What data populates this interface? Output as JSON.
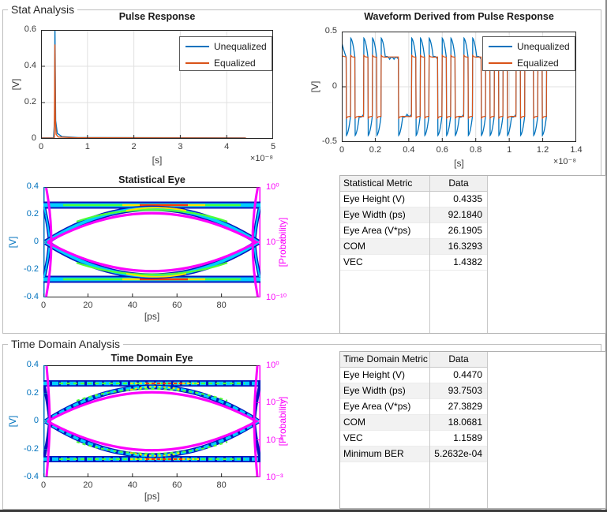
{
  "panels": {
    "stat": {
      "title": "Stat Analysis"
    },
    "time": {
      "title": "Time Domain Analysis"
    }
  },
  "legend": {
    "items": [
      {
        "label": "Unequalized",
        "color": "#0072BD"
      },
      {
        "label": "Equalized",
        "color": "#D95319"
      }
    ]
  },
  "colors": {
    "unequalized": "#0072BD",
    "equalized": "#D95319",
    "left_axis_volt": "#0072BD",
    "right_axis_prob": "#FB02FB",
    "axis_box": "#262626",
    "grid": "#e0e0e0"
  },
  "chart_data": [
    {
      "id": "pulse",
      "type": "line",
      "title": "Pulse Response",
      "xlabel": "[s]",
      "ylabel": "[V]",
      "x_scale_label": "×10⁻⁸",
      "xlim": [
        0,
        5
      ],
      "ylim": [
        0,
        0.6
      ],
      "grid": true,
      "xticks": [
        {
          "v": 0,
          "l": "0"
        },
        {
          "v": 1,
          "l": "1"
        },
        {
          "v": 2,
          "l": "2"
        },
        {
          "v": 3,
          "l": "3"
        },
        {
          "v": 4,
          "l": "4"
        },
        {
          "v": 5,
          "l": "5"
        }
      ],
      "yticks": [
        {
          "v": 0,
          "l": "0"
        },
        {
          "v": 0.2,
          "l": "0.2"
        },
        {
          "v": 0.4,
          "l": "0.4"
        },
        {
          "v": 0.6,
          "l": "0.6"
        }
      ],
      "legend": [
        "Unequalized",
        "Equalized"
      ],
      "series": [
        {
          "name": "Unequalized",
          "color": "#0072BD",
          "x": [
            0,
            0.27,
            0.29,
            0.3,
            0.315,
            0.35,
            0.45,
            0.8,
            4.4
          ],
          "y": [
            0.005,
            0.005,
            0.1,
            0.62,
            0.1,
            0.03,
            0.012,
            0.007,
            0.005
          ]
        },
        {
          "name": "Equalized",
          "color": "#D95319",
          "x": [
            0,
            0.285,
            0.3,
            0.31,
            0.325,
            0.37,
            0.7,
            4.42
          ],
          "y": [
            0.004,
            0.004,
            0.52,
            0.1,
            0.025,
            0.01,
            0.006,
            0.004
          ]
        }
      ]
    },
    {
      "id": "waveform",
      "type": "line",
      "title": "Waveform Derived from Pulse Response",
      "xlabel": "[s]",
      "ylabel": "[V]",
      "x_scale_label": "×10⁻⁸",
      "xlim": [
        0,
        1.4
      ],
      "ylim": [
        -0.5,
        0.5
      ],
      "grid": true,
      "xticks": [
        {
          "v": 0,
          "l": "0"
        },
        {
          "v": 0.2,
          "l": "0.2"
        },
        {
          "v": 0.4,
          "l": "0.4"
        },
        {
          "v": 0.6,
          "l": "0.6"
        },
        {
          "v": 0.8,
          "l": "0.8"
        },
        {
          "v": 1,
          "l": "1"
        },
        {
          "v": 1.2,
          "l": "1.2"
        },
        {
          "v": 1.4,
          "l": "1.4"
        }
      ],
      "yticks": [
        {
          "v": -0.5,
          "l": "-0.5"
        },
        {
          "v": 0,
          "l": "0"
        },
        {
          "v": 0.5,
          "l": "0.5"
        }
      ],
      "legend": [
        "Unequalized",
        "Equalized"
      ],
      "bit_period": 0.026,
      "bits": [
        1,
        0,
        1,
        0,
        0,
        1,
        0,
        1,
        0,
        1,
        1,
        1,
        1,
        0,
        0,
        0,
        1,
        0,
        1,
        0,
        1,
        1,
        0,
        1,
        0,
        1,
        0,
        0,
        1,
        0,
        1,
        1,
        0,
        1,
        0,
        1,
        0,
        1,
        0,
        0,
        1,
        0,
        1,
        1,
        0,
        1,
        0,
        1
      ],
      "levels": {
        "equalized_amp": 0.28,
        "unequalized_settled": 0.25,
        "unequalized_overshoot": 0.44
      }
    },
    {
      "id": "stat_eye",
      "type": "eye",
      "title": "Statistical Eye",
      "xlabel": "[ps]",
      "ylabel_left": "[V]",
      "ylabel_right": "[Probability]",
      "xlim": [
        0,
        97.5
      ],
      "ylim_left": [
        -0.4,
        0.4
      ],
      "xticks": [
        {
          "v": 0,
          "l": "0"
        },
        {
          "v": 20,
          "l": "20"
        },
        {
          "v": 40,
          "l": "40"
        },
        {
          "v": 60,
          "l": "60"
        },
        {
          "v": 80,
          "l": "80"
        }
      ],
      "yticks_left": [
        {
          "v": 0.4,
          "l": "0.4"
        },
        {
          "v": 0.2,
          "l": "0.2"
        },
        {
          "v": 0,
          "l": "0"
        },
        {
          "v": -0.2,
          "l": "-0.2"
        },
        {
          "v": -0.4,
          "l": "-0.4"
        }
      ],
      "yticks_right": [
        {
          "f": 0,
          "l": "10⁰"
        },
        {
          "f": 0.5,
          "l": "10⁻⁵"
        },
        {
          "f": 1,
          "l": "10⁻¹⁰"
        }
      ],
      "rail_level_v": 0.27,
      "eye_apex_v": 0.24,
      "crossings_ps": [
        2.5,
        94.7
      ]
    },
    {
      "id": "time_eye",
      "type": "eye",
      "title": "Time Domain Eye",
      "xlabel": "[ps]",
      "ylabel_left": "[V]",
      "ylabel_right": "[Probability]",
      "xlim": [
        0,
        97.5
      ],
      "ylim_left": [
        -0.4,
        0.4
      ],
      "xticks": [
        {
          "v": 0,
          "l": "0"
        },
        {
          "v": 20,
          "l": "20"
        },
        {
          "v": 40,
          "l": "40"
        },
        {
          "v": 60,
          "l": "60"
        },
        {
          "v": 80,
          "l": "80"
        }
      ],
      "yticks_left": [
        {
          "v": 0.4,
          "l": "0.4"
        },
        {
          "v": 0.2,
          "l": "0.2"
        },
        {
          "v": 0,
          "l": "0"
        },
        {
          "v": -0.2,
          "l": "-0.2"
        },
        {
          "v": -0.4,
          "l": "-0.4"
        }
      ],
      "yticks_right": [
        {
          "f": 0,
          "l": "10⁰"
        },
        {
          "f": 0.3333,
          "l": "10⁻¹"
        },
        {
          "f": 0.6667,
          "l": "10⁻²"
        },
        {
          "f": 1,
          "l": "10⁻³"
        }
      ],
      "rail_level_v": 0.27,
      "eye_apex_v": 0.24,
      "crossings_ps": [
        1.9,
        95.7
      ]
    }
  ],
  "tables": {
    "stat": {
      "headers": [
        "Statistical Metric",
        "Data"
      ],
      "rows": [
        [
          "Eye Height (V)",
          "0.4335"
        ],
        [
          "Eye Width (ps)",
          "92.1840"
        ],
        [
          "Eye Area (V*ps)",
          "26.1905"
        ],
        [
          "COM",
          "16.3293"
        ],
        [
          "VEC",
          "1.4382"
        ]
      ]
    },
    "time": {
      "headers": [
        "Time Domain Metric",
        "Data"
      ],
      "rows": [
        [
          "Eye Height (V)",
          "0.4470"
        ],
        [
          "Eye Width (ps)",
          "93.7503"
        ],
        [
          "Eye Area (V*ps)",
          "27.3829"
        ],
        [
          "COM",
          "18.0681"
        ],
        [
          "VEC",
          "1.1589"
        ],
        [
          "Minimum BER",
          "5.2632e-04"
        ]
      ]
    }
  }
}
